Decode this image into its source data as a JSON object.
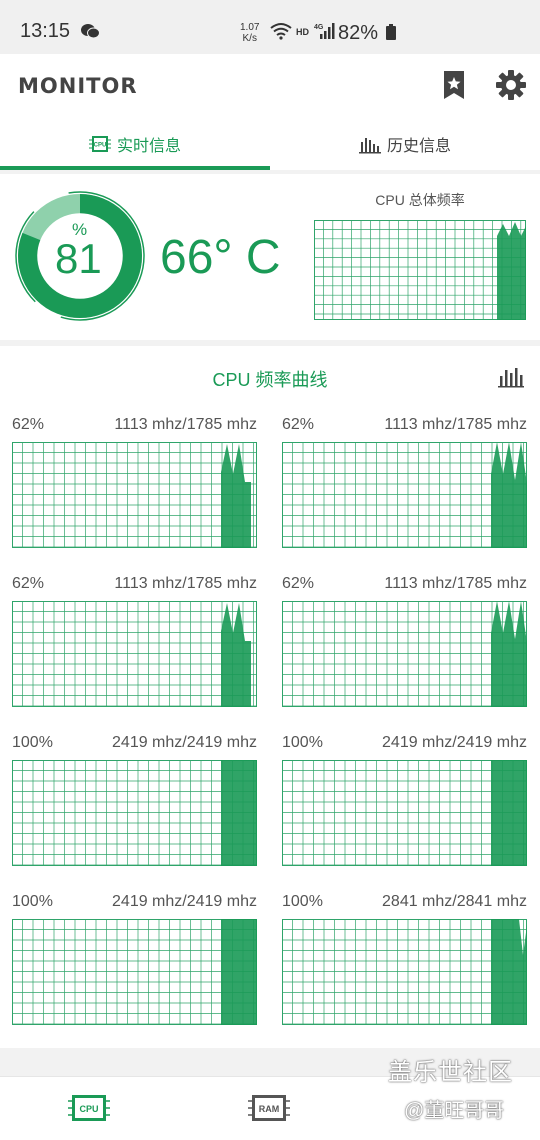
{
  "status_bar": {
    "time": "13:15",
    "net_speed_value": "1.07",
    "net_speed_unit": "K/s",
    "hd_label": "HD",
    "network_label": "4G",
    "battery_percent": "82%",
    "icons": [
      "wechat-icon",
      "wifi-icon",
      "signal-icon",
      "battery-icon"
    ]
  },
  "app_bar": {
    "title": "MONITOR",
    "actions": [
      "favorite-star-icon",
      "settings-gear-icon"
    ]
  },
  "tabs": [
    {
      "label": "实时信息",
      "icon": "cpu-chip-icon",
      "selected": true
    },
    {
      "label": "历史信息",
      "icon": "bar-chart-icon",
      "selected": false
    }
  ],
  "overview": {
    "usage_sign": "%",
    "usage_value": "81",
    "usage_fraction": 0.81,
    "temperature": "66° C",
    "total_freq_label": "CPU 总体频率"
  },
  "cores_section": {
    "title": "CPU 频率曲线",
    "icon": "bar-chart-icon"
  },
  "cores": [
    {
      "usage": "62%",
      "freq_current": "1113 mhz",
      "freq_max": "1785 mhz"
    },
    {
      "usage": "62%",
      "freq_current": "1113 mhz",
      "freq_max": "1785 mhz"
    },
    {
      "usage": "62%",
      "freq_current": "1113 mhz",
      "freq_max": "1785 mhz"
    },
    {
      "usage": "62%",
      "freq_current": "1113 mhz",
      "freq_max": "1785 mhz"
    },
    {
      "usage": "100%",
      "freq_current": "2419 mhz",
      "freq_max": "2419 mhz"
    },
    {
      "usage": "100%",
      "freq_current": "2419 mhz",
      "freq_max": "2419 mhz"
    },
    {
      "usage": "100%",
      "freq_current": "2419 mhz",
      "freq_max": "2419 mhz"
    },
    {
      "usage": "100%",
      "freq_current": "2841 mhz",
      "freq_max": "2841 mhz"
    }
  ],
  "bottom_nav": [
    {
      "label": "CPU",
      "selected": true
    },
    {
      "label": "RAM",
      "selected": false
    }
  ],
  "watermark": {
    "line1": "盖乐世社区",
    "line2": "@董旺哥哥"
  },
  "colors": {
    "accent": "#1a9a56",
    "accent_light": "#8fd1ac",
    "grid": "#2fa46a"
  }
}
